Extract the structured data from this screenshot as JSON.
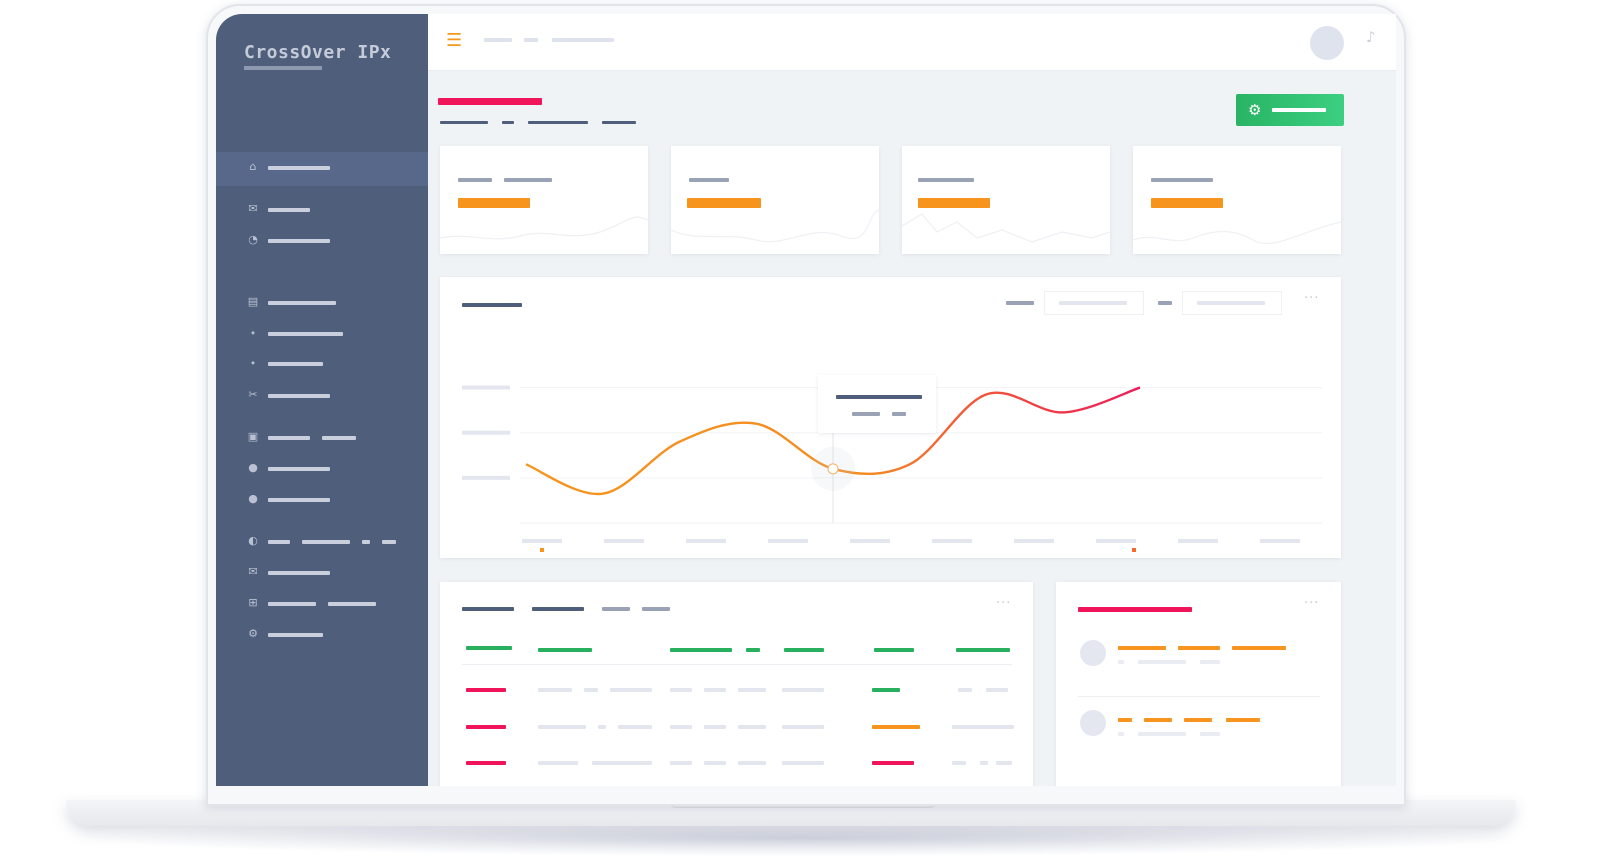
{
  "app": {
    "brand": "CrossOver IPx"
  },
  "topbar": {
    "menu_icon": "hamburger-icon",
    "icons": [
      "bell-icon",
      "chat-icon",
      "mail-icon"
    ]
  },
  "sidebar": {
    "items": [
      {
        "icon": "home-icon",
        "glyph": "⌂",
        "active": true
      },
      {
        "icon": "chat-icon",
        "glyph": "✉"
      },
      {
        "icon": "pie-chart-icon",
        "glyph": "◔"
      },
      {
        "icon": "archive-icon",
        "glyph": "▤"
      },
      {
        "icon": "tags-icon",
        "glyph": "⬩"
      },
      {
        "icon": "tag-icon",
        "glyph": "⬩"
      },
      {
        "icon": "scissors-icon",
        "glyph": "✂"
      },
      {
        "icon": "briefcase-icon",
        "glyph": "▣"
      },
      {
        "icon": "user-icon",
        "glyph": "●"
      },
      {
        "icon": "users-icon",
        "glyph": "●"
      },
      {
        "icon": "toggle-icon",
        "glyph": "◐"
      },
      {
        "icon": "envelope-icon",
        "glyph": "✉"
      },
      {
        "icon": "plus-square-icon",
        "glyph": "⊞"
      },
      {
        "icon": "gear-icon",
        "glyph": "⚙"
      }
    ]
  },
  "header": {
    "settings_icon": "gear-icon"
  },
  "colors": {
    "sidebar": "#4f5e7b",
    "accent_pink": "#f0145a",
    "accent_orange": "#f7941d",
    "accent_green": "#27b15f",
    "line_start": "#f7941d",
    "line_end": "#ee1b5b"
  },
  "chart_data": {
    "type": "line",
    "title": "",
    "xlabel": "",
    "ylabel": "",
    "x": [
      0,
      1,
      2,
      3,
      4,
      5,
      6,
      7,
      8
    ],
    "series": [
      {
        "values": [
          1.3,
          0.65,
          1.8,
          2.2,
          1.2,
          1.3,
          2.85,
          2.45,
          3.0
        ]
      }
    ],
    "ylim": [
      0,
      3.5
    ],
    "grid": true,
    "legend": "none"
  }
}
